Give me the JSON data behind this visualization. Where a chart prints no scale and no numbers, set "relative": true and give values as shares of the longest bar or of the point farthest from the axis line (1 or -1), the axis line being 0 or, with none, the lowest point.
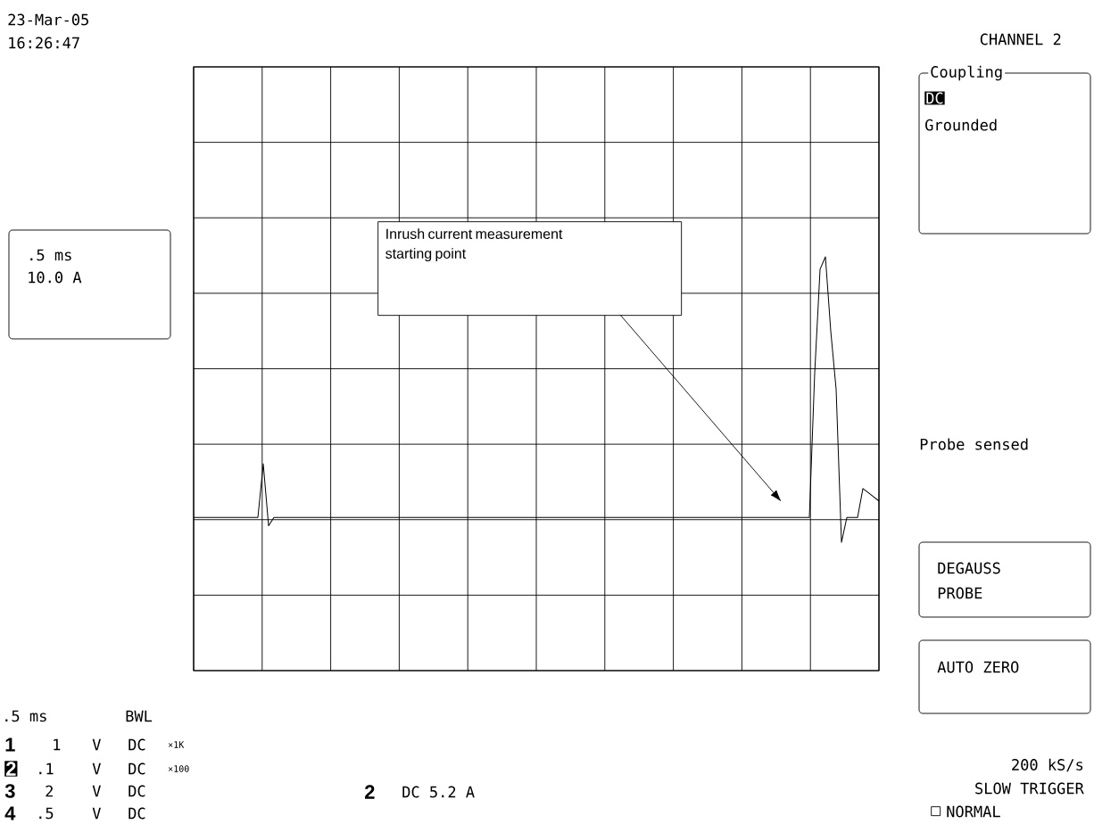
{
  "chart_data": {
    "type": "line",
    "relative": true,
    "grid": true,
    "tick_labels": false,
    "categories": [
      null,
      null,
      null,
      null,
      null,
      null,
      null,
      null,
      null,
      null,
      null,
      null,
      null,
      null,
      null,
      null,
      null,
      null,
      null,
      null,
      null,
      null,
      null,
      null,
      null,
      null,
      null,
      null,
      null,
      null,
      null,
      null,
      null,
      null,
      null,
      null,
      null,
      null,
      null,
      null,
      null,
      null,
      null,
      null,
      null,
      null,
      null,
      null,
      null,
      null,
      null,
      null,
      null,
      null,
      null,
      null,
      null,
      null,
      null,
      null,
      null,
      null,
      null,
      null,
      null,
      null,
      null,
      null,
      null,
      null,
      null,
      null,
      null,
      null,
      null,
      null,
      null,
      null,
      null,
      null,
      null,
      null,
      null,
      null,
      null,
      null,
      null,
      null,
      null,
      null,
      null,
      null,
      null,
      null,
      null,
      null,
      null,
      null,
      null,
      null,
      null,
      null,
      null,
      null,
      null,
      null,
      null,
      null,
      null,
      null,
      null,
      null,
      null,
      null,
      null,
      null,
      null,
      null,
      null,
      null,
      null,
      null,
      null,
      null,
      null,
      null,
      null,
      null,
      null
    ],
    "series": [
      {
        "color": "#000000",
        "values": [
          0.37,
          0.37,
          0.37,
          0.37,
          0.37,
          0.37,
          0.37,
          0.37,
          0.37,
          0.37,
          0.37,
          0.37,
          0.37,
          0.5,
          0.35,
          0.37,
          0.37,
          0.37,
          0.37,
          0.37,
          0.37,
          0.37,
          0.37,
          0.37,
          0.37,
          0.37,
          0.37,
          0.37,
          0.37,
          0.37,
          0.37,
          0.37,
          0.37,
          0.37,
          0.37,
          0.37,
          0.37,
          0.37,
          0.37,
          0.37,
          0.37,
          0.37,
          0.37,
          0.37,
          0.37,
          0.37,
          0.37,
          0.37,
          0.37,
          0.37,
          0.37,
          0.37,
          0.37,
          0.37,
          0.37,
          0.37,
          0.37,
          0.37,
          0.37,
          0.37,
          0.37,
          0.37,
          0.37,
          0.37,
          0.37,
          0.37,
          0.37,
          0.37,
          0.37,
          0.37,
          0.37,
          0.37,
          0.37,
          0.37,
          0.37,
          0.37,
          0.37,
          0.37,
          0.37,
          0.37,
          0.37,
          0.37,
          0.37,
          0.37,
          0.37,
          0.37,
          0.37,
          0.37,
          0.37,
          0.37,
          0.37,
          0.37,
          0.37,
          0.37,
          0.37,
          0.37,
          0.37,
          0.37,
          0.37,
          0.37,
          0.37,
          0.37,
          0.37,
          0.37,
          0.37,
          0.37,
          0.37,
          0.37,
          0.37,
          0.37,
          0.37,
          0.37,
          0.37,
          0.37,
          0.37,
          0.37,
          0.72,
          0.97,
          1,
          0.82,
          0.68,
          0.31,
          0.37,
          0.37,
          0.37,
          0.44,
          0.43,
          0.42,
          0.41
        ]
      }
    ],
    "annotations": [
      "23-Mar-05",
      "16:26:47",
      "CHANNEL 2",
      "Coupling",
      "DC",
      "Grounded",
      ".5 ms",
      "10.0 A",
      "Probe sensed",
      "DEGAUSS",
      "PROBE",
      "AUTO ZERO",
      ".5 ms",
      "BWL",
      "1",
      "1",
      "V",
      "DC",
      "×1K",
      "2",
      ".1",
      "V",
      "DC",
      "×100",
      "3",
      "2",
      "V",
      "DC",
      "4",
      ".5",
      "V",
      "DC",
      "2",
      "DC 5.2 A",
      "200 kS/s",
      "SLOW TRIGGER",
      "NORMAL",
      "Inrush current measurement starting point"
    ]
  }
}
